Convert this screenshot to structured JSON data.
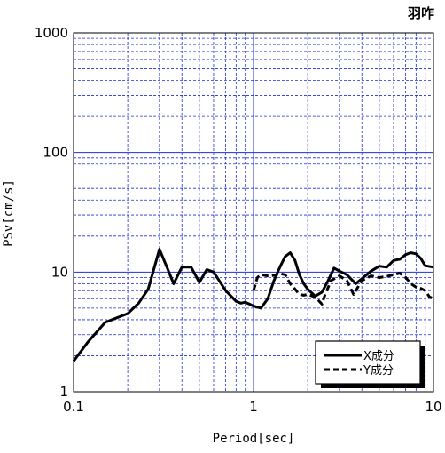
{
  "chart_data": {
    "type": "line",
    "title": "羽咋",
    "xlabel": "Period[sec]",
    "ylabel": "PSv[cm/s]",
    "xscale": "log",
    "yscale": "log",
    "xlim": [
      0.1,
      10
    ],
    "ylim": [
      1,
      1000
    ],
    "xticks": [
      "0.1",
      "1",
      "10"
    ],
    "yticks": [
      "1",
      "10",
      "100",
      "1000"
    ],
    "grid": true,
    "legend_position": "bottom-right",
    "series": [
      {
        "name": "X成分",
        "style": "solid",
        "color": "#000000",
        "points": [
          [
            0.1,
            1.8
          ],
          [
            0.12,
            2.6
          ],
          [
            0.15,
            3.8
          ],
          [
            0.2,
            4.5
          ],
          [
            0.23,
            5.5
          ],
          [
            0.26,
            7.2
          ],
          [
            0.3,
            15.5
          ],
          [
            0.33,
            11
          ],
          [
            0.36,
            8.0
          ],
          [
            0.4,
            11
          ],
          [
            0.45,
            11
          ],
          [
            0.5,
            8.2
          ],
          [
            0.55,
            10.5
          ],
          [
            0.6,
            10
          ],
          [
            0.7,
            7.0
          ],
          [
            0.8,
            5.7
          ],
          [
            0.85,
            5.5
          ],
          [
            0.9,
            5.6
          ],
          [
            0.95,
            5.4
          ],
          [
            1.0,
            5.2
          ],
          [
            1.1,
            5.0
          ],
          [
            1.2,
            6.0
          ],
          [
            1.3,
            8.5
          ],
          [
            1.4,
            11
          ],
          [
            1.5,
            13.5
          ],
          [
            1.6,
            14.5
          ],
          [
            1.7,
            12.5
          ],
          [
            1.8,
            9.5
          ],
          [
            1.9,
            8.0
          ],
          [
            2.0,
            7.2
          ],
          [
            2.2,
            6.3
          ],
          [
            2.4,
            6.8
          ],
          [
            2.6,
            8.5
          ],
          [
            2.8,
            10.8
          ],
          [
            3.0,
            10.2
          ],
          [
            3.3,
            9.5
          ],
          [
            3.7,
            8.0
          ],
          [
            4.0,
            8.8
          ],
          [
            4.5,
            10.2
          ],
          [
            5.0,
            11.2
          ],
          [
            5.5,
            11.0
          ],
          [
            6.0,
            12.5
          ],
          [
            6.5,
            12.8
          ],
          [
            7.0,
            14.0
          ],
          [
            7.5,
            14.5
          ],
          [
            8.0,
            14.2
          ],
          [
            8.5,
            13.0
          ],
          [
            9.0,
            11.3
          ],
          [
            10.0,
            11.0
          ]
        ]
      },
      {
        "name": "Y成分",
        "style": "dashed",
        "color": "#000000",
        "points": [
          [
            1.0,
            7.0
          ],
          [
            1.05,
            9.0
          ],
          [
            1.1,
            9.5
          ],
          [
            1.2,
            9.3
          ],
          [
            1.3,
            9.4
          ],
          [
            1.4,
            9.7
          ],
          [
            1.5,
            9.5
          ],
          [
            1.6,
            8.0
          ],
          [
            1.7,
            7.2
          ],
          [
            1.8,
            6.5
          ],
          [
            1.9,
            6.4
          ],
          [
            2.0,
            6.5
          ],
          [
            2.2,
            6.2
          ],
          [
            2.4,
            5.4
          ],
          [
            2.5,
            6.5
          ],
          [
            2.7,
            8.5
          ],
          [
            3.0,
            9.3
          ],
          [
            3.3,
            8.5
          ],
          [
            3.6,
            6.5
          ],
          [
            4.0,
            8.5
          ],
          [
            4.5,
            9.3
          ],
          [
            5.0,
            9.0
          ],
          [
            5.5,
            9.2
          ],
          [
            6.0,
            9.5
          ],
          [
            6.5,
            9.8
          ],
          [
            7.0,
            9.0
          ],
          [
            7.5,
            8.0
          ],
          [
            8.0,
            7.5
          ],
          [
            8.5,
            7.3
          ],
          [
            9.0,
            7.0
          ],
          [
            9.5,
            6.2
          ],
          [
            10.0,
            6.0
          ]
        ]
      }
    ]
  }
}
